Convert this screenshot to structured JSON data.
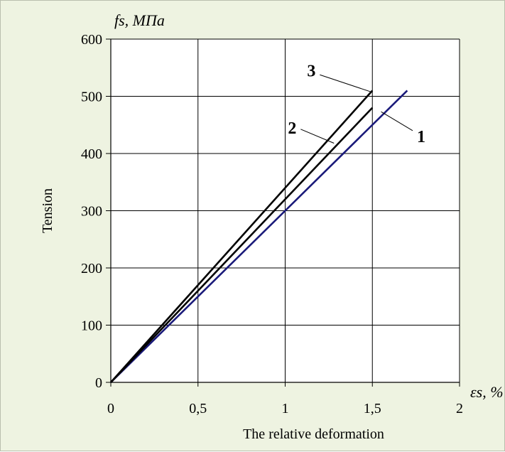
{
  "chart_data": {
    "type": "line",
    "xlabel": "The relative deformation",
    "ylabel": "Tension",
    "x_unit_label": "εs, %",
    "y_unit_label": "fs, МПа",
    "xlim": [
      0,
      2
    ],
    "ylim": [
      0,
      600
    ],
    "x_ticks": [
      0,
      0.5,
      1,
      1.5,
      2
    ],
    "x_tick_labels": [
      "0",
      "0,5",
      "1",
      "1,5",
      "2"
    ],
    "y_ticks": [
      0,
      100,
      200,
      300,
      400,
      500,
      600
    ],
    "y_tick_labels": [
      "0",
      "100",
      "200",
      "300",
      "400",
      "500",
      "600"
    ],
    "grid": true,
    "series": [
      {
        "name": "1",
        "color": "#1a1a7a",
        "x": [
          0,
          1.7
        ],
        "y": [
          0,
          510
        ]
      },
      {
        "name": "2",
        "color": "#000000",
        "x": [
          0,
          1.5
        ],
        "y": [
          0,
          480
        ]
      },
      {
        "name": "3",
        "color": "#000000",
        "x": [
          0,
          1.5
        ],
        "y": [
          0,
          510
        ]
      }
    ]
  }
}
